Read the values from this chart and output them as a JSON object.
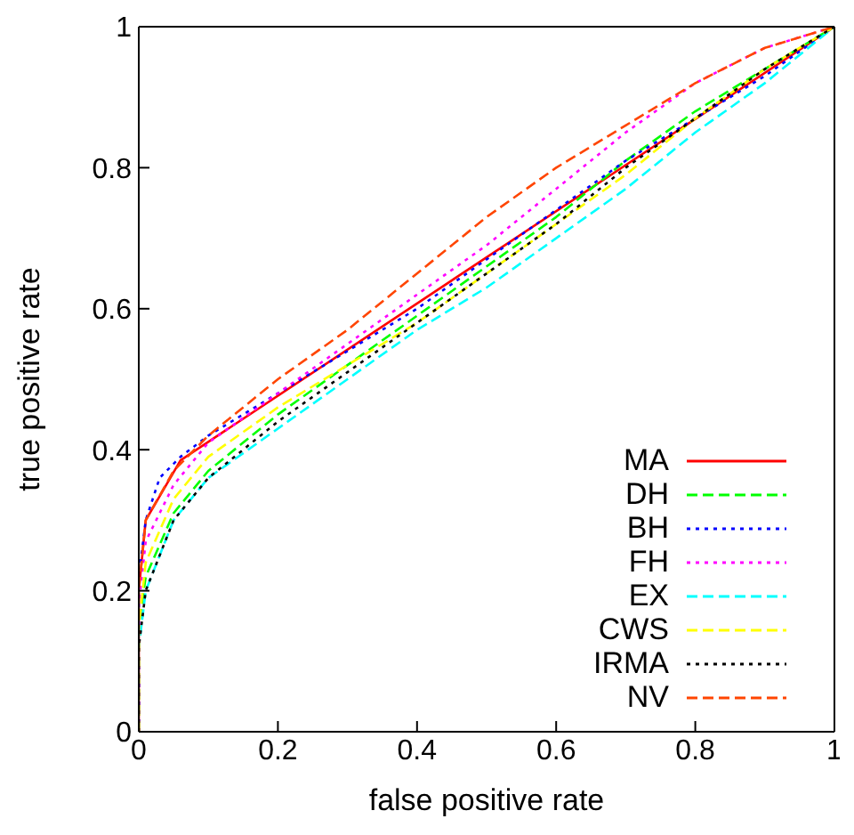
{
  "chart_data": {
    "type": "line",
    "xlabel": "false positive rate",
    "ylabel": "true positive rate",
    "xlim": [
      0,
      1
    ],
    "ylim": [
      0,
      1
    ],
    "xticks": [
      0,
      0.2,
      0.4,
      0.6,
      0.8,
      1
    ],
    "yticks": [
      0,
      0.2,
      0.4,
      0.6,
      0.8,
      1
    ],
    "legend": "bottom right",
    "marker": "none",
    "series": [
      {
        "name": "MA",
        "color": "#ff0000",
        "line_style": "solid",
        "x": [
          0,
          0,
          0.01,
          0.06,
          1
        ],
        "values": [
          0,
          0.2,
          0.3,
          0.385,
          1
        ]
      },
      {
        "name": "DH",
        "color": "#00ff00",
        "line_style": "dashed",
        "x": [
          0,
          0,
          0.01,
          0.05,
          0.1,
          0.2,
          0.3,
          0.4,
          0.5,
          0.6,
          0.7,
          0.8,
          0.9,
          1
        ],
        "values": [
          0,
          0.15,
          0.22,
          0.31,
          0.37,
          0.45,
          0.52,
          0.59,
          0.66,
          0.73,
          0.81,
          0.88,
          0.94,
          1
        ]
      },
      {
        "name": "BH",
        "color": "#0000ff",
        "line_style": "dotted",
        "x": [
          0,
          0,
          0.01,
          0.03,
          0.06,
          0.1,
          0.2,
          0.3,
          0.4,
          0.5,
          0.6,
          0.7,
          0.8,
          0.9,
          1
        ],
        "values": [
          0,
          0.22,
          0.3,
          0.36,
          0.39,
          0.42,
          0.48,
          0.54,
          0.6,
          0.67,
          0.74,
          0.81,
          0.87,
          0.93,
          1
        ]
      },
      {
        "name": "FH",
        "color": "#ff00ff",
        "line_style": "dotted",
        "x": [
          0,
          0,
          0.01,
          0.05,
          0.1,
          0.2,
          0.3,
          0.4,
          0.5,
          0.6,
          0.7,
          0.8,
          0.9,
          1
        ],
        "values": [
          0,
          0.18,
          0.27,
          0.35,
          0.41,
          0.48,
          0.55,
          0.62,
          0.69,
          0.77,
          0.85,
          0.92,
          0.97,
          1
        ]
      },
      {
        "name": "EX",
        "color": "#00ffff",
        "line_style": "dashed",
        "x": [
          0,
          0,
          0.01,
          0.05,
          0.1,
          0.2,
          0.3,
          0.4,
          0.5,
          0.6,
          0.7,
          0.8,
          0.9,
          1
        ],
        "values": [
          0,
          0.12,
          0.2,
          0.3,
          0.36,
          0.43,
          0.5,
          0.57,
          0.63,
          0.7,
          0.77,
          0.85,
          0.92,
          1
        ]
      },
      {
        "name": "CWS",
        "color": "#ffff00",
        "line_style": "dashed",
        "x": [
          0,
          0,
          0.01,
          0.05,
          0.1,
          0.2,
          0.3,
          0.4,
          0.5,
          0.6,
          0.7,
          0.8,
          0.9,
          1
        ],
        "values": [
          0,
          0.15,
          0.24,
          0.33,
          0.39,
          0.46,
          0.52,
          0.58,
          0.65,
          0.72,
          0.79,
          0.87,
          0.94,
          1
        ]
      },
      {
        "name": "IRMA",
        "color": "#000000",
        "line_style": "dotted",
        "x": [
          0,
          0,
          0.01,
          0.05,
          0.1,
          0.2,
          0.3,
          0.4,
          0.5,
          0.6,
          0.7,
          0.8,
          0.9,
          1
        ],
        "values": [
          0,
          0.12,
          0.2,
          0.3,
          0.36,
          0.44,
          0.51,
          0.58,
          0.65,
          0.72,
          0.8,
          0.87,
          0.94,
          1
        ]
      },
      {
        "name": "NV",
        "color": "#ff4500",
        "line_style": "dashed",
        "x": [
          0,
          0,
          0.01,
          0.05,
          0.1,
          0.2,
          0.3,
          0.4,
          0.5,
          0.6,
          0.7,
          0.8,
          0.9,
          1
        ],
        "values": [
          0,
          0.2,
          0.3,
          0.37,
          0.42,
          0.5,
          0.57,
          0.65,
          0.73,
          0.8,
          0.86,
          0.92,
          0.97,
          1
        ]
      }
    ]
  }
}
